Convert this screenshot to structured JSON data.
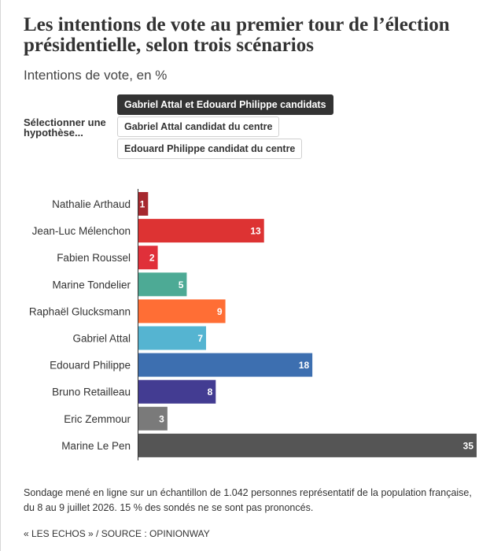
{
  "title": "Les intentions de vote au premier tour de l’élection présidentielle, selon trois scénarios",
  "subtitle": "Intentions de vote, en %",
  "selector": {
    "label": "Sélectionner une hypothèse...",
    "options": [
      {
        "label": "Gabriel Attal et Edouard Philippe candidats",
        "active": true
      },
      {
        "label": "Gabriel Attal candidat du centre",
        "active": false
      },
      {
        "label": "Edouard Philippe candidat du centre",
        "active": false
      }
    ]
  },
  "chart_data": {
    "type": "bar",
    "orientation": "horizontal",
    "categories": [
      "Nathalie Arthaud",
      "Jean-Luc Mélenchon",
      "Fabien Roussel",
      "Marine Tondelier",
      "Raphaël Glucksmann",
      "Gabriel Attal",
      "Edouard Philippe",
      "Bruno Retailleau",
      "Eric Zemmour",
      "Marine Le Pen"
    ],
    "values": [
      1,
      13,
      2,
      5,
      9,
      7,
      18,
      8,
      3,
      35
    ],
    "colors": [
      "#a6282e",
      "#dd3333",
      "#e0303a",
      "#4daa95",
      "#ff6e35",
      "#55b4d1",
      "#3d6fb0",
      "#433c92",
      "#7a7a7a",
      "#555555"
    ],
    "value_labels": [
      "1",
      "13",
      "2",
      "5",
      "9",
      "7",
      "18",
      "8",
      "3",
      "35"
    ],
    "xlim": [
      0,
      35
    ],
    "grid": false,
    "legend": "none"
  },
  "footnote": "Sondage mené en ligne sur un échantillon de 1.042 personnes représentatif de la population française, du 8 au 9 juillet 2026. 15 % des sondés ne se sont pas prononcés.",
  "source": "« LES ECHOS » / SOURCE : OPINIONWAY"
}
